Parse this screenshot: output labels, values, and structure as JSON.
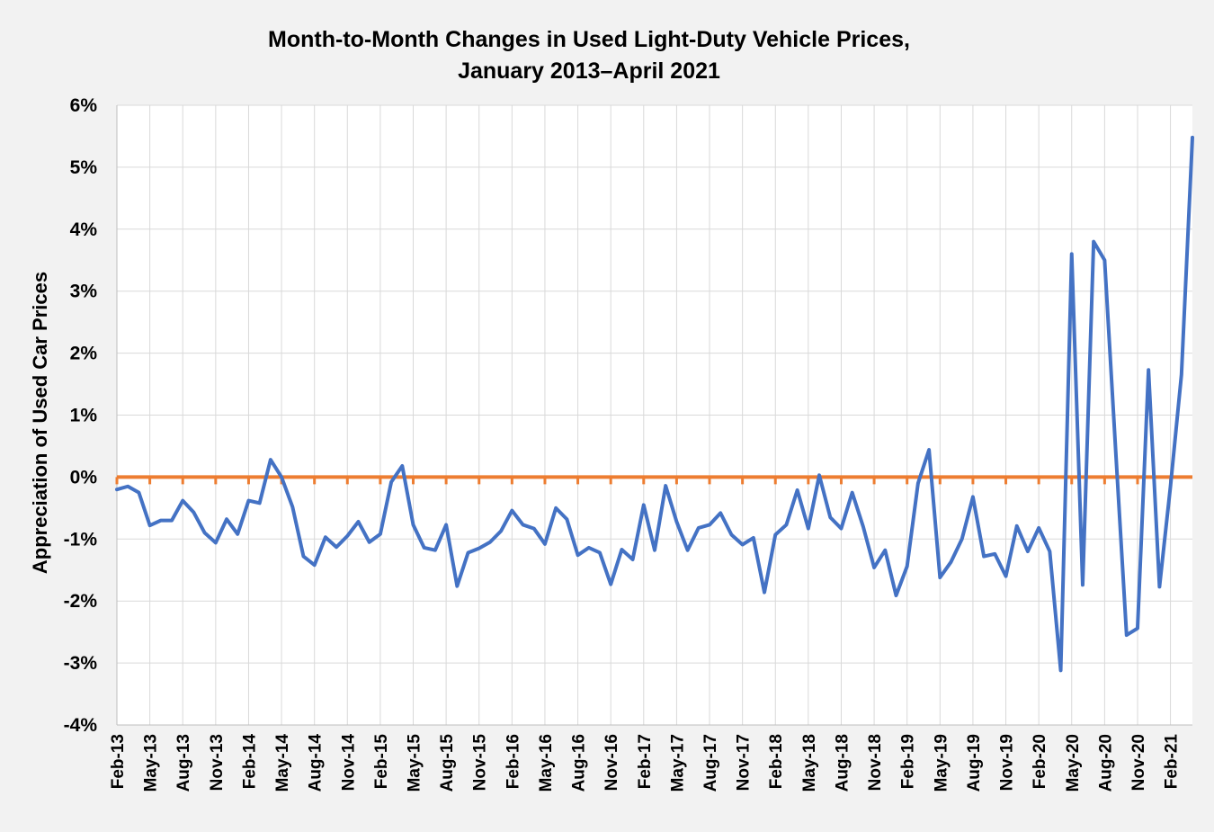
{
  "chart_data": {
    "type": "line",
    "title": [
      "Month-to-Month Changes in Used Light-Duty Vehicle Prices,",
      "January 2013–April 2021"
    ],
    "xlabel": "",
    "ylabel": "Appreciation of Used Car Prices",
    "ylim": [
      -4,
      6
    ],
    "yticks": [
      6,
      5,
      4,
      3,
      2,
      1,
      0,
      -1,
      -2,
      -3,
      -4
    ],
    "ytick_labels": [
      "6%",
      "5%",
      "4%",
      "3%",
      "2%",
      "1%",
      "0%",
      "-1%",
      "-2%",
      "-3%",
      "-4%"
    ],
    "x_start": "Feb-13",
    "x_end": "Apr-21",
    "xtick_labels": [
      "Feb-13",
      "May-13",
      "Aug-13",
      "Nov-13",
      "Feb-14",
      "May-14",
      "Aug-14",
      "Nov-14",
      "Feb-15",
      "May-15",
      "Aug-15",
      "Nov-15",
      "Feb-16",
      "May-16",
      "Aug-16",
      "Nov-16",
      "Feb-17",
      "May-17",
      "Aug-17",
      "Nov-17",
      "Feb-18",
      "May-18",
      "Aug-18",
      "Nov-18",
      "Feb-19",
      "May-19",
      "Aug-19",
      "Nov-19",
      "Feb-20",
      "May-20",
      "Aug-20",
      "Nov-20",
      "Feb-21"
    ],
    "grid": true,
    "series": [
      {
        "name": "Month-to-month change",
        "color": "#4472c4",
        "values": [
          -0.2,
          -0.15,
          -0.25,
          -0.78,
          -0.7,
          -0.7,
          -0.38,
          -0.57,
          -0.9,
          -1.06,
          -0.68,
          -0.92,
          -0.38,
          -0.42,
          0.28,
          0.0,
          -0.48,
          -1.28,
          -1.42,
          -0.97,
          -1.13,
          -0.95,
          -0.72,
          -1.05,
          -0.92,
          -0.08,
          0.18,
          -0.77,
          -1.14,
          -1.18,
          -0.77,
          -1.76,
          -1.22,
          -1.15,
          -1.05,
          -0.87,
          -0.54,
          -0.77,
          -0.83,
          -1.08,
          -0.5,
          -0.68,
          -1.26,
          -1.14,
          -1.22,
          -1.73,
          -1.17,
          -1.33,
          -0.45,
          -1.18,
          -0.14,
          -0.72,
          -1.18,
          -0.82,
          -0.77,
          -0.58,
          -0.93,
          -1.09,
          -0.98,
          -1.86,
          -0.93,
          -0.77,
          -0.21,
          -0.83,
          0.03,
          -0.65,
          -0.83,
          -0.25,
          -0.8,
          -1.46,
          -1.18,
          -1.91,
          -1.44,
          -0.1,
          0.44,
          -1.62,
          -1.37,
          -1.0,
          -0.32,
          -1.28,
          -1.24,
          -1.6,
          -0.79,
          -1.2,
          -0.82,
          -1.2,
          -3.12,
          3.6,
          -1.74,
          3.8,
          3.5,
          0.45,
          -2.55,
          -2.44,
          1.73,
          -1.77,
          -0.15,
          1.65,
          5.48
        ]
      },
      {
        "name": "Zero line",
        "color": "#ed7d31",
        "values": [
          0
        ]
      }
    ]
  }
}
